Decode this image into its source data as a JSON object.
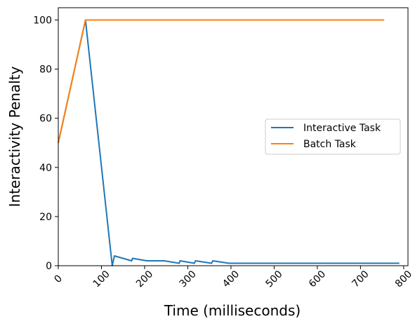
{
  "chart_data": {
    "type": "line",
    "title": "",
    "xlabel": "Time (milliseconds)",
    "ylabel": "Interactivity Penalty",
    "xlim": [
      0,
      810
    ],
    "ylim": [
      0,
      105
    ],
    "xticks": [
      0,
      100,
      200,
      300,
      400,
      500,
      600,
      700,
      800
    ],
    "yticks": [
      0,
      20,
      40,
      60,
      80,
      100
    ],
    "x_tick_rotation": 45,
    "grid": false,
    "legend_position": "center right",
    "series": [
      {
        "name": "Interactive Task",
        "color": "#1f77b4",
        "points": [
          [
            0,
            50
          ],
          [
            63,
            100
          ],
          [
            125,
            0
          ],
          [
            130,
            4
          ],
          [
            170,
            2
          ],
          [
            172,
            3
          ],
          [
            205,
            2
          ],
          [
            245,
            2
          ],
          [
            280,
            1
          ],
          [
            282,
            2
          ],
          [
            315,
            1
          ],
          [
            318,
            2
          ],
          [
            355,
            1
          ],
          [
            358,
            2
          ],
          [
            395,
            1
          ],
          [
            790,
            1
          ]
        ]
      },
      {
        "name": "Batch Task",
        "color": "#ff7f0e",
        "points": [
          [
            0,
            50
          ],
          [
            63,
            100
          ],
          [
            755,
            100
          ]
        ]
      }
    ]
  }
}
